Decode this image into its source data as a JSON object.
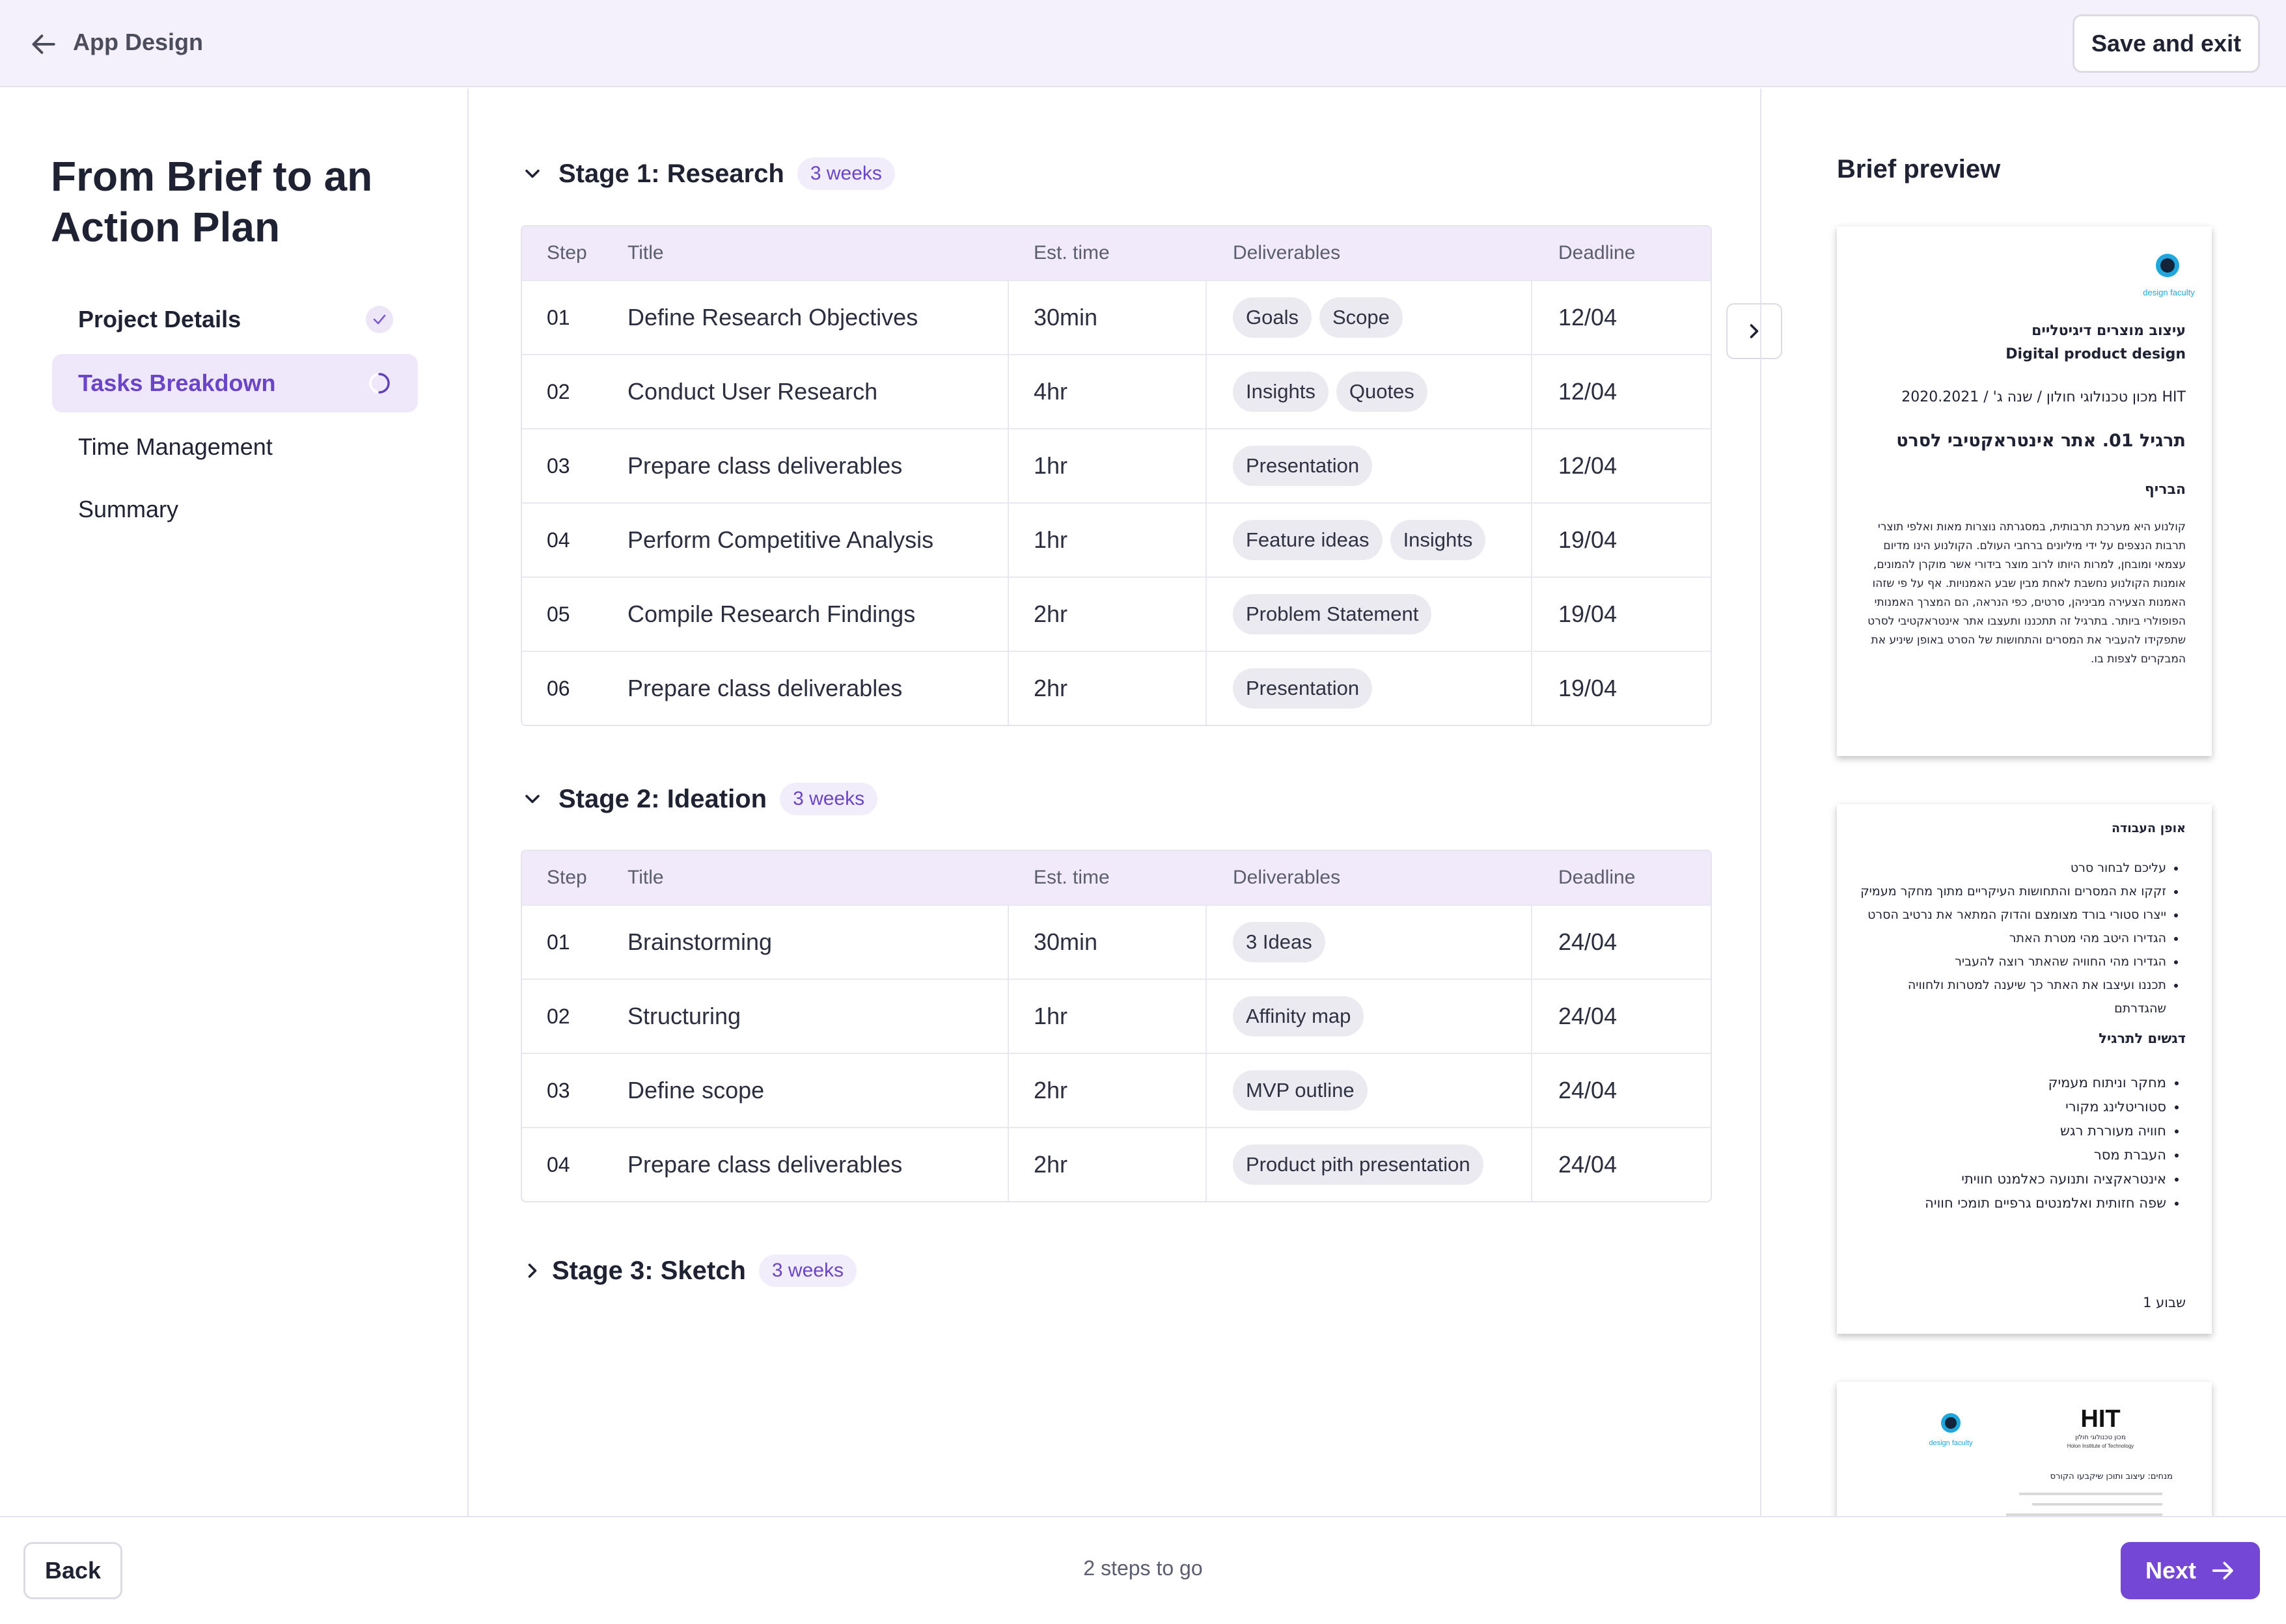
{
  "header": {
    "back_label": "App Design",
    "save_exit": "Save and exit"
  },
  "sidebar": {
    "title": "From Brief to an Action Plan",
    "items": [
      {
        "label": "Project Details",
        "status": "done"
      },
      {
        "label": "Tasks Breakdown",
        "status": "in-progress"
      },
      {
        "label": "Time Management",
        "status": "pending"
      },
      {
        "label": "Summary",
        "status": "pending"
      }
    ]
  },
  "table_headers": {
    "step": "Step",
    "title": "Title",
    "est": "Est. time",
    "deliverables": "Deliverables",
    "deadline": "Deadline"
  },
  "stages": [
    {
      "title": "Stage 1: Research",
      "badge": "3 weeks",
      "expanded": true,
      "rows": [
        {
          "step": "01",
          "title": "Define Research Objectives",
          "est": "30min",
          "deliverables": [
            "Goals",
            "Scope"
          ],
          "deadline": "12/04"
        },
        {
          "step": "02",
          "title": "Conduct User Research",
          "est": "4hr",
          "deliverables": [
            "Insights",
            "Quotes"
          ],
          "deadline": "12/04"
        },
        {
          "step": "03",
          "title": "Prepare class deliverables",
          "est": "1hr",
          "deliverables": [
            "Presentation"
          ],
          "deadline": "12/04"
        },
        {
          "step": "04",
          "title": "Perform Competitive Analysis",
          "est": "1hr",
          "deliverables": [
            "Feature ideas",
            "Insights"
          ],
          "deadline": "19/04"
        },
        {
          "step": "05",
          "title": "Compile Research Findings",
          "est": "2hr",
          "deliverables": [
            "Problem Statement"
          ],
          "deadline": "19/04"
        },
        {
          "step": "06",
          "title": "Prepare class deliverables",
          "est": "2hr",
          "deliverables": [
            "Presentation"
          ],
          "deadline": "19/04"
        }
      ]
    },
    {
      "title": "Stage 2: Ideation",
      "badge": "3 weeks",
      "expanded": true,
      "rows": [
        {
          "step": "01",
          "title": "Brainstorming",
          "est": "30min",
          "deliverables": [
            "3 Ideas"
          ],
          "deadline": "24/04"
        },
        {
          "step": "02",
          "title": "Structuring",
          "est": "1hr",
          "deliverables": [
            "Affinity map"
          ],
          "deadline": "24/04"
        },
        {
          "step": "03",
          "title": "Define scope",
          "est": "2hr",
          "deliverables": [
            "MVP outline"
          ],
          "deadline": "24/04"
        },
        {
          "step": "04",
          "title": "Prepare class deliverables",
          "est": "2hr",
          "deliverables": [
            "Product pith presentation"
          ],
          "deadline": "24/04"
        }
      ]
    },
    {
      "title": "Stage 3: Sketch",
      "badge": "3 weeks",
      "expanded": false,
      "rows": []
    }
  ],
  "preview": {
    "title": "Brief preview",
    "page1": {
      "logo": "design faculty",
      "line1": "עיצוב מוצרים דיגיטליים",
      "line2": "Digital product design",
      "line3": "HIT מכון טכנולוגי חולון / שנה ג' / 2020.2021",
      "heading": "תרגיל 01. אתר אינטראקטיבי לסרט",
      "subheading": "הבריף",
      "body": "קולנוע היא מערכת תרבותית, במסגרתה נוצרות מאות ואלפי תוצרי תרבות הנצפים על ידי מיליונים ברחבי העולם. הקולנוע הינו מדיום עצמאי ומובחן, למרות היותו לרוב מוצר בידורי אשר מוקרן להמונים, אומנות הקולנוע נחשבת לאחת מבין שבע האמנויות. אף על פי שזהו האמנות הצעירה מביניהן, סרטים, כפי הנראה, הם המצרך האמנותי הפופולרי ביותר. בתרגיל זה תתכננו ותעצבו אתר אינטראקטיבי לסרט שתפקידו להעביר את המסרים והתחושות של הסרט באופן שיניע את המבקרים לצפות בו."
    },
    "page2": {
      "heading1": "אופן העבודה",
      "list1": [
        "עליכם לבחור סרט",
        "זקקו את המסרים והתחושות העיקריים מתוך מחקר מעמיק",
        "ייצרו סטורי בורד מצומצם והדוק המתאר את נרטיב הסרט",
        "הגדירו היטב מהי מטרת האתר",
        "הגדירו מהי החוויה שהאתר רוצה להעביר",
        "תכננו ועיצבו את האתר כך שיענה למטרות ולחוויה שהגדרתם"
      ],
      "heading2": "דגשים לתרגיל",
      "list2": [
        "מחקר וניתוח מעמיק",
        "סטוריטלינג מקורי",
        "חוויה מעוררת רגש",
        "העברת מסר",
        "אינטראקציה ותנועה כאלמנט חוויתי",
        "שפה חזותית ואלמנטים גרפיים תומכי חוויה"
      ],
      "footer": "שבוע 1"
    },
    "page3": {
      "logo_left": "design faculty",
      "logo_right": "HIT",
      "logo_right_sub": "מכון טכנולוגי חולון",
      "logo_right_sub2": "Holon Institute of Technology",
      "line": "מנחים: עיצוב ותוכן שיקבעו הקורס"
    }
  },
  "footer": {
    "back": "Back",
    "steps_to_go": "2 steps to go",
    "next": "Next"
  },
  "colors": {
    "accent": "#7447d6",
    "accent_light": "#efe8fb",
    "header_bg": "#f5f1fc",
    "table_header_bg": "#f1eafb",
    "chip_bg": "#eceaf1"
  }
}
